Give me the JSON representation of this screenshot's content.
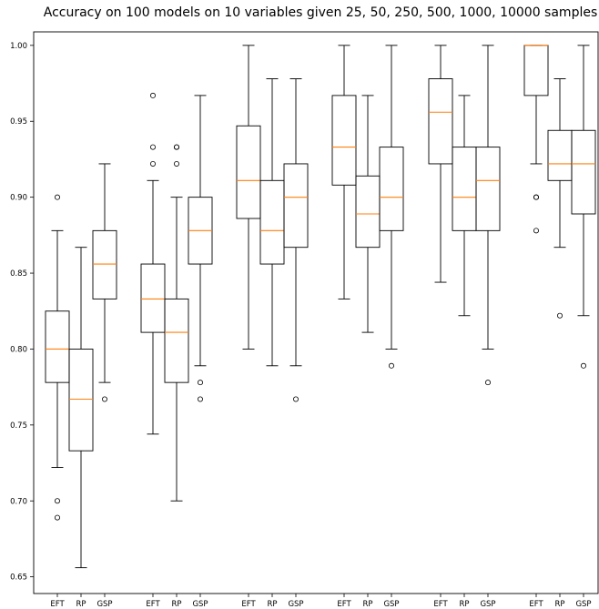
{
  "chart_data": {
    "type": "boxplot",
    "title": "Accuracy on 100 models on 10 variables given 25, 50, 250, 500, 1000, 10000 samples",
    "xlabel": "",
    "ylabel": "",
    "ylim": [
      0.639,
      1.0089
    ],
    "yticks": [
      0.65,
      0.7,
      0.75,
      0.8,
      0.85,
      0.9,
      0.95,
      1.0
    ],
    "ytick_labels": [
      "0.65",
      "0.70",
      "0.75",
      "0.80",
      "0.85",
      "0.90",
      "0.95",
      "1.00"
    ],
    "grid": false,
    "legend": "none",
    "box_color": "#000000",
    "median_color": "#ff7f0e",
    "categories": [
      "EFT",
      "RP",
      "GSP",
      "EFT",
      "RP",
      "GSP",
      "EFT",
      "RP",
      "GSP",
      "EFT",
      "RP",
      "GSP",
      "EFT",
      "RP",
      "GSP",
      "EFT",
      "RP",
      "GSP"
    ],
    "boxes": [
      {
        "label": "EFT",
        "whislo": 0.722,
        "q1": 0.778,
        "med": 0.8,
        "q3": 0.825,
        "whishi": 0.878,
        "fliers": [
          0.689,
          0.7,
          0.9
        ]
      },
      {
        "label": "RP",
        "whislo": 0.656,
        "q1": 0.733,
        "med": 0.767,
        "q3": 0.8,
        "whishi": 0.867,
        "fliers": []
      },
      {
        "label": "GSP",
        "whislo": 0.778,
        "q1": 0.833,
        "med": 0.856,
        "q3": 0.878,
        "whishi": 0.922,
        "fliers": [
          0.767
        ]
      },
      {
        "label": "EFT",
        "whislo": 0.744,
        "q1": 0.811,
        "med": 0.833,
        "q3": 0.856,
        "whishi": 0.911,
        "fliers": [
          0.922,
          0.933,
          0.967
        ]
      },
      {
        "label": "RP",
        "whislo": 0.7,
        "q1": 0.778,
        "med": 0.811,
        "q3": 0.833,
        "whishi": 0.9,
        "fliers": [
          0.922,
          0.933,
          0.933
        ]
      },
      {
        "label": "GSP",
        "whislo": 0.789,
        "q1": 0.856,
        "med": 0.878,
        "q3": 0.9,
        "whishi": 0.967,
        "fliers": [
          0.767,
          0.778
        ]
      },
      {
        "label": "EFT",
        "whislo": 0.8,
        "q1": 0.886,
        "med": 0.911,
        "q3": 0.947,
        "whishi": 1.0,
        "fliers": []
      },
      {
        "label": "RP",
        "whislo": 0.789,
        "q1": 0.856,
        "med": 0.878,
        "q3": 0.911,
        "whishi": 0.978,
        "fliers": []
      },
      {
        "label": "GSP",
        "whislo": 0.789,
        "q1": 0.867,
        "med": 0.9,
        "q3": 0.922,
        "whishi": 0.978,
        "fliers": [
          0.767
        ]
      },
      {
        "label": "EFT",
        "whislo": 0.833,
        "q1": 0.908,
        "med": 0.933,
        "q3": 0.967,
        "whishi": 1.0,
        "fliers": []
      },
      {
        "label": "RP",
        "whislo": 0.811,
        "q1": 0.867,
        "med": 0.889,
        "q3": 0.914,
        "whishi": 0.967,
        "fliers": []
      },
      {
        "label": "GSP",
        "whislo": 0.8,
        "q1": 0.878,
        "med": 0.9,
        "q3": 0.933,
        "whishi": 1.0,
        "fliers": [
          0.789
        ]
      },
      {
        "label": "EFT",
        "whislo": 0.844,
        "q1": 0.922,
        "med": 0.956,
        "q3": 0.978,
        "whishi": 1.0,
        "fliers": []
      },
      {
        "label": "RP",
        "whislo": 0.822,
        "q1": 0.878,
        "med": 0.9,
        "q3": 0.933,
        "whishi": 0.967,
        "fliers": []
      },
      {
        "label": "GSP",
        "whislo": 0.8,
        "q1": 0.878,
        "med": 0.911,
        "q3": 0.933,
        "whishi": 1.0,
        "fliers": [
          0.778
        ]
      },
      {
        "label": "EFT",
        "whislo": 0.922,
        "q1": 0.967,
        "med": 1.0,
        "q3": 1.0,
        "whishi": 1.0,
        "fliers": [
          0.878,
          0.9,
          0.9
        ]
      },
      {
        "label": "RP",
        "whislo": 0.867,
        "q1": 0.911,
        "med": 0.922,
        "q3": 0.944,
        "whishi": 0.978,
        "fliers": [
          0.822
        ]
      },
      {
        "label": "GSP",
        "whislo": 0.822,
        "q1": 0.889,
        "med": 0.922,
        "q3": 0.944,
        "whishi": 1.0,
        "fliers": [
          0.789
        ]
      }
    ]
  }
}
